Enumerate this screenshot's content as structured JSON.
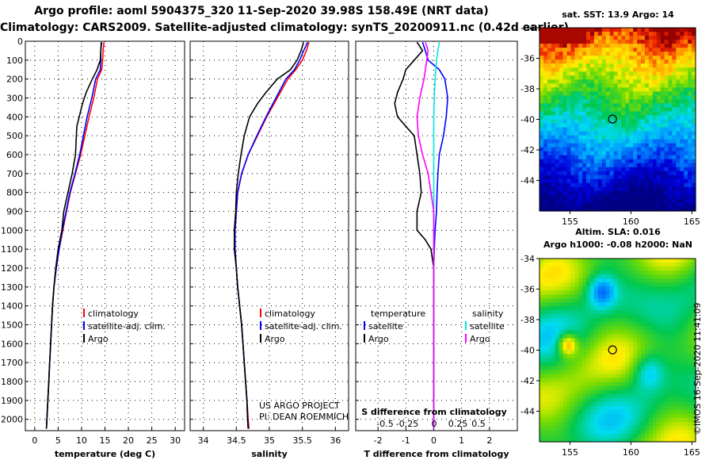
{
  "header": {
    "line1": "Argo profile: aoml 5904375_320 11-Sep-2020 39.98S 158.49E (NRT data)",
    "line2": "Climatology: CARS2009. Satellite-adjusted climatology: synTS_20200911.nc (0.42d earlier)"
  },
  "credit": {
    "line1": "US ARGO PROJECT",
    "line2": "PI: DEAN ROEMMICH"
  },
  "stamp": "©IMOS 16-Sep-2020 11:41:09",
  "colors": {
    "climatology": "#ff0000",
    "satellite": "#0000ff",
    "argo": "#000000",
    "salinity_satellite": "#00e5e5",
    "salinity_argo": "#ff00ff"
  },
  "chart_data": [
    {
      "type": "line",
      "name": "temperature",
      "xlabel": "temperature (deg C)",
      "xlim": [
        -2,
        32
      ],
      "ylim": [
        0,
        2060
      ],
      "xticks": [
        0,
        5,
        10,
        15,
        20,
        25,
        30
      ],
      "yticks": [
        0,
        100,
        200,
        300,
        400,
        500,
        600,
        700,
        800,
        900,
        1000,
        1100,
        1200,
        1300,
        1400,
        1500,
        1600,
        1700,
        1800,
        1900,
        2000
      ],
      "grid": true,
      "legend": [
        "climatology",
        "satellite-adj. clim.",
        "Argo"
      ],
      "series": [
        {
          "name": "climatology",
          "color": "#ff0000",
          "points": [
            [
              14.8,
              5
            ],
            [
              14.6,
              50
            ],
            [
              14.5,
              100
            ],
            [
              14.3,
              150
            ],
            [
              13.4,
              200
            ],
            [
              12.6,
              300
            ],
            [
              11.6,
              400
            ],
            [
              10.7,
              500
            ],
            [
              9.8,
              600
            ],
            [
              8.7,
              700
            ],
            [
              7.6,
              800
            ],
            [
              6.8,
              900
            ],
            [
              6.0,
              1000
            ],
            [
              5.2,
              1100
            ],
            [
              4.6,
              1200
            ],
            [
              4.1,
              1300
            ],
            [
              3.8,
              1400
            ],
            [
              3.6,
              1500
            ],
            [
              3.4,
              1600
            ],
            [
              3.2,
              1700
            ],
            [
              3.0,
              1800
            ],
            [
              2.8,
              1900
            ],
            [
              2.6,
              2000
            ],
            [
              2.5,
              2050
            ]
          ]
        },
        {
          "name": "satellite",
          "color": "#0000ff",
          "points": [
            [
              14.3,
              5
            ],
            [
              14.1,
              50
            ],
            [
              14.1,
              100
            ],
            [
              14.0,
              150
            ],
            [
              13.0,
              200
            ],
            [
              12.2,
              300
            ],
            [
              11.2,
              400
            ],
            [
              10.4,
              500
            ],
            [
              9.6,
              600
            ],
            [
              8.6,
              700
            ],
            [
              7.5,
              800
            ],
            [
              6.7,
              900
            ],
            [
              5.9,
              1000
            ],
            [
              5.2,
              1100
            ],
            [
              4.6,
              1200
            ],
            [
              4.1,
              1300
            ],
            [
              3.8,
              1400
            ],
            [
              3.6,
              1500
            ],
            [
              3.4,
              1600
            ],
            [
              3.2,
              1700
            ],
            [
              3.0,
              1800
            ],
            [
              2.8,
              1900
            ],
            [
              2.6,
              2000
            ],
            [
              2.5,
              2050
            ]
          ]
        },
        {
          "name": "Argo",
          "color": "#000000",
          "points": [
            [
              14.2,
              5
            ],
            [
              14.1,
              50
            ],
            [
              14.0,
              100
            ],
            [
              13.3,
              150
            ],
            [
              12.3,
              200
            ],
            [
              11.0,
              270
            ],
            [
              10.2,
              330
            ],
            [
              9.5,
              400
            ],
            [
              9.0,
              450
            ],
            [
              8.9,
              500
            ],
            [
              8.7,
              600
            ],
            [
              8.0,
              700
            ],
            [
              7.1,
              800
            ],
            [
              6.2,
              900
            ],
            [
              5.8,
              1000
            ],
            [
              5.0,
              1100
            ],
            [
              4.5,
              1200
            ],
            [
              4.1,
              1300
            ],
            [
              3.8,
              1400
            ],
            [
              3.6,
              1500
            ],
            [
              3.4,
              1600
            ],
            [
              3.2,
              1700
            ],
            [
              3.0,
              1800
            ],
            [
              2.8,
              1900
            ],
            [
              2.6,
              2000
            ],
            [
              2.5,
              2050
            ]
          ]
        }
      ]
    },
    {
      "type": "line",
      "name": "salinity",
      "xlabel": "salinity",
      "xlim": [
        33.8,
        36.2
      ],
      "ylim": [
        0,
        2060
      ],
      "xticks": [
        34,
        34.5,
        35,
        35.5,
        36
      ],
      "grid": true,
      "legend": [
        "climatology",
        "satellite-adj. clim.",
        "Argo"
      ],
      "series": [
        {
          "name": "climatology",
          "color": "#ff0000",
          "points": [
            [
              35.6,
              5
            ],
            [
              35.56,
              50
            ],
            [
              35.5,
              100
            ],
            [
              35.4,
              150
            ],
            [
              35.28,
              200
            ],
            [
              35.12,
              300
            ],
            [
              34.96,
              400
            ],
            [
              34.82,
              500
            ],
            [
              34.68,
              600
            ],
            [
              34.58,
              700
            ],
            [
              34.52,
              800
            ],
            [
              34.5,
              900
            ],
            [
              34.48,
              1000
            ],
            [
              34.48,
              1100
            ],
            [
              34.5,
              1200
            ],
            [
              34.52,
              1300
            ],
            [
              34.55,
              1400
            ],
            [
              34.58,
              1500
            ],
            [
              34.6,
              1600
            ],
            [
              34.62,
              1700
            ],
            [
              34.64,
              1800
            ],
            [
              34.66,
              1900
            ],
            [
              34.68,
              2000
            ],
            [
              34.69,
              2050
            ]
          ]
        },
        {
          "name": "satellite",
          "color": "#0000ff",
          "points": [
            [
              35.58,
              5
            ],
            [
              35.52,
              50
            ],
            [
              35.46,
              100
            ],
            [
              35.38,
              150
            ],
            [
              35.25,
              200
            ],
            [
              35.1,
              300
            ],
            [
              34.95,
              400
            ],
            [
              34.81,
              500
            ],
            [
              34.68,
              600
            ],
            [
              34.58,
              700
            ],
            [
              34.52,
              800
            ],
            [
              34.5,
              900
            ],
            [
              34.48,
              1000
            ],
            [
              34.48,
              1100
            ],
            [
              34.5,
              1200
            ],
            [
              34.52,
              1300
            ],
            [
              34.55,
              1400
            ],
            [
              34.58,
              1500
            ],
            [
              34.6,
              1600
            ],
            [
              34.62,
              1700
            ],
            [
              34.64,
              1800
            ],
            [
              34.66,
              1900
            ],
            [
              34.67,
              2000
            ],
            [
              34.68,
              2050
            ]
          ]
        },
        {
          "name": "Argo",
          "color": "#000000",
          "points": [
            [
              35.52,
              5
            ],
            [
              35.48,
              50
            ],
            [
              35.42,
              100
            ],
            [
              35.32,
              150
            ],
            [
              35.12,
              200
            ],
            [
              34.95,
              270
            ],
            [
              34.82,
              330
            ],
            [
              34.7,
              400
            ],
            [
              34.62,
              500
            ],
            [
              34.57,
              600
            ],
            [
              34.53,
              700
            ],
            [
              34.5,
              800
            ],
            [
              34.49,
              900
            ],
            [
              34.47,
              1000
            ],
            [
              34.47,
              1100
            ],
            [
              34.5,
              1200
            ],
            [
              34.52,
              1300
            ],
            [
              34.55,
              1400
            ],
            [
              34.58,
              1500
            ],
            [
              34.6,
              1600
            ],
            [
              34.62,
              1700
            ],
            [
              34.64,
              1800
            ],
            [
              34.66,
              1900
            ],
            [
              34.67,
              2000
            ],
            [
              34.68,
              2050
            ]
          ]
        }
      ]
    },
    {
      "type": "line",
      "name": "difference",
      "xlabel": "T difference from climatology",
      "xlabel_top": "S difference from climatology",
      "xlim": [
        -2.8,
        3.0
      ],
      "ylim": [
        0,
        2060
      ],
      "xticks": [
        -2,
        -1,
        0,
        1,
        2
      ],
      "xticks_s": [
        "-0.5",
        "-0.25",
        "0",
        "0.25",
        "0.5"
      ],
      "grid": true,
      "legend_left": {
        "title": "temperature",
        "items": [
          "satellite",
          "Argo"
        ]
      },
      "legend_right": {
        "title": "salinity",
        "items": [
          "satellite",
          "Argo"
        ]
      },
      "series": [
        {
          "name": "T satellite",
          "color": "#0000ff",
          "points": [
            [
              -0.4,
              5
            ],
            [
              -0.3,
              50
            ],
            [
              -0.2,
              100
            ],
            [
              0.2,
              150
            ],
            [
              0.4,
              200
            ],
            [
              0.5,
              300
            ],
            [
              0.45,
              400
            ],
            [
              0.35,
              500
            ],
            [
              0.2,
              600
            ],
            [
              0.15,
              700
            ],
            [
              0.12,
              800
            ],
            [
              0.1,
              900
            ],
            [
              0.05,
              1000
            ],
            [
              0.02,
              1100
            ],
            [
              0,
              1200
            ],
            [
              0,
              1400
            ],
            [
              0,
              2050
            ]
          ]
        },
        {
          "name": "T Argo",
          "color": "#000000",
          "points": [
            [
              -0.6,
              5
            ],
            [
              -0.4,
              50
            ],
            [
              -0.7,
              100
            ],
            [
              -1.0,
              150
            ],
            [
              -1.1,
              200
            ],
            [
              -1.3,
              270
            ],
            [
              -1.4,
              330
            ],
            [
              -1.3,
              400
            ],
            [
              -1.0,
              450
            ],
            [
              -0.7,
              500
            ],
            [
              -0.6,
              600
            ],
            [
              -0.5,
              700
            ],
            [
              -0.45,
              800
            ],
            [
              -0.6,
              900
            ],
            [
              -0.6,
              1000
            ],
            [
              -0.3,
              1050
            ],
            [
              -0.1,
              1100
            ],
            [
              0,
              1200
            ],
            [
              0,
              2050
            ]
          ]
        },
        {
          "name": "S satellite",
          "color": "#00e5e5",
          "points": [
            [
              0.2,
              5
            ],
            [
              0.15,
              50
            ],
            [
              0.1,
              100
            ],
            [
              0.05,
              200
            ],
            [
              0.02,
              300
            ],
            [
              0,
              400
            ],
            [
              0,
              2050
            ]
          ]
        },
        {
          "name": "S Argo",
          "color": "#ff00ff",
          "points": [
            [
              -0.3,
              5
            ],
            [
              -0.2,
              50
            ],
            [
              -0.25,
              100
            ],
            [
              -0.35,
              200
            ],
            [
              -0.5,
              300
            ],
            [
              -0.6,
              400
            ],
            [
              -0.55,
              500
            ],
            [
              -0.4,
              600
            ],
            [
              -0.2,
              700
            ],
            [
              -0.1,
              800
            ],
            [
              0,
              900
            ],
            [
              0,
              2050
            ]
          ]
        }
      ]
    },
    {
      "type": "heatmap",
      "name": "sst_map",
      "title": "sat. SST: 13.9 Argo: 14",
      "xticks": [
        155,
        160,
        165
      ],
      "yticks": [
        -34,
        -36,
        -38,
        -40,
        -42,
        -44
      ],
      "xlim": [
        152.5,
        165.3
      ],
      "ylim": [
        -46,
        -34
      ],
      "marker": {
        "lon": 158.49,
        "lat": -39.98
      }
    },
    {
      "type": "heatmap",
      "name": "sla_map",
      "title_line1": "Altim. SLA: 0.016",
      "title_line2": "Argo h1000: -0.08 h2000: NaN",
      "xticks": [
        155,
        160,
        165
      ],
      "yticks": [
        -34,
        -36,
        -38,
        -40,
        -42,
        -44
      ],
      "xlim": [
        152.5,
        165.3
      ],
      "ylim": [
        -46,
        -34
      ],
      "marker": {
        "lon": 158.49,
        "lat": -39.98
      }
    }
  ]
}
